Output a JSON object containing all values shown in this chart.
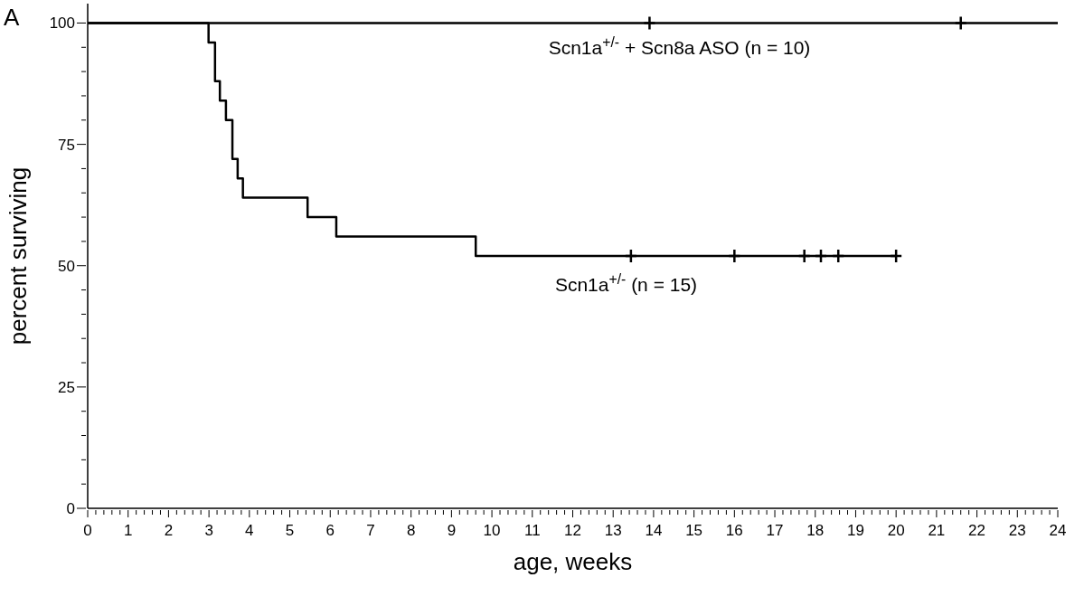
{
  "chart_data": {
    "type": "step",
    "xlabel": "age, weeks",
    "ylabel": "percent surviving",
    "annotations": [
      "A",
      "Scn1a$^{+/-}$ + Scn8a ASO  (n = 10)",
      "Scn1a$^{+/-}$  (n = 15)"
    ],
    "series": [
      {
        "color": "#000000",
        "x": [
          0,
          24
        ],
        "values": [
          100,
          100
        ]
      },
      {
        "color": "#000000",
        "x": [
          0,
          2.99,
          3.15,
          3.27,
          3.42,
          3.58,
          3.71,
          3.84,
          5.44,
          6.15,
          9.6,
          20
        ],
        "values": [
          100,
          96,
          88,
          84,
          80,
          72,
          68,
          64,
          60,
          56,
          52,
          52
        ]
      },
      {
        "type": "scatter",
        "marker": "cross",
        "color": "#000000",
        "x": [
          13.9,
          21.6
        ],
        "values": [
          100,
          100
        ]
      },
      {
        "type": "scatter",
        "marker": "cross",
        "color": "#000000",
        "x": [
          13.44,
          16,
          17.73,
          18.14,
          18.57,
          20
        ],
        "values": [
          52,
          52,
          52,
          52,
          52,
          52
        ]
      }
    ],
    "xlim": [
      0,
      24
    ],
    "ylim": [
      0,
      104
    ],
    "xticks": [
      0,
      {
        "value": 0.2,
        "label": null
      },
      {
        "value": 0.4,
        "label": null
      },
      {
        "value": 0.6,
        "label": null
      },
      {
        "value": 0.8,
        "label": null
      },
      1,
      {
        "value": 1.2,
        "label": null
      },
      {
        "value": 1.4,
        "label": null
      },
      {
        "value": 1.6,
        "label": null
      },
      {
        "value": 1.8,
        "label": null
      },
      2,
      {
        "value": 2.2,
        "label": null
      },
      {
        "value": 2.4,
        "label": null
      },
      {
        "value": 2.6,
        "label": null
      },
      {
        "value": 2.8,
        "label": null
      },
      3,
      {
        "value": 3.2,
        "label": null
      },
      {
        "value": 3.4,
        "label": null
      },
      {
        "value": 3.6,
        "label": null
      },
      {
        "value": 3.8,
        "label": null
      },
      4,
      {
        "value": 4.2,
        "label": null
      },
      {
        "value": 4.4,
        "label": null
      },
      {
        "value": 4.6,
        "label": null
      },
      {
        "value": 4.8,
        "label": null
      },
      5,
      {
        "value": 5.2,
        "label": null
      },
      {
        "value": 5.4,
        "label": null
      },
      {
        "value": 5.6,
        "label": null
      },
      {
        "value": 5.8,
        "label": null
      },
      6,
      {
        "value": 6.2,
        "label": null
      },
      {
        "value": 6.4,
        "label": null
      },
      {
        "value": 6.6,
        "label": null
      },
      {
        "value": 6.8,
        "label": null
      },
      7,
      {
        "value": 7.2,
        "label": null
      },
      {
        "value": 7.4,
        "label": null
      },
      {
        "value": 7.6,
        "label": null
      },
      {
        "value": 7.8,
        "label": null
      },
      8,
      {
        "value": 8.2,
        "label": null
      },
      {
        "value": 8.4,
        "label": null
      },
      {
        "value": 8.6,
        "label": null
      },
      {
        "value": 8.8,
        "label": null
      },
      9,
      {
        "value": 9.2,
        "label": null
      },
      {
        "value": 9.4,
        "label": null
      },
      {
        "value": 9.6,
        "label": null
      },
      {
        "value": 9.8,
        "label": null
      },
      10,
      {
        "value": 10.2,
        "label": null
      },
      {
        "value": 10.4,
        "label": null
      },
      {
        "value": 10.6,
        "label": null
      },
      {
        "value": 10.8,
        "label": null
      },
      11,
      {
        "value": 11.2,
        "label": null
      },
      {
        "value": 11.4,
        "label": null
      },
      {
        "value": 11.6,
        "label": null
      },
      {
        "value": 11.8,
        "label": null
      },
      12,
      {
        "value": 12.2,
        "label": null
      },
      {
        "value": 12.4,
        "label": null
      },
      {
        "value": 12.6,
        "label": null
      },
      {
        "value": 12.8,
        "label": null
      },
      13,
      {
        "value": 13.2,
        "label": null
      },
      {
        "value": 13.4,
        "label": null
      },
      {
        "value": 13.6,
        "label": null
      },
      {
        "value": 13.8,
        "label": null
      },
      14,
      {
        "value": 14.2,
        "label": null
      },
      {
        "value": 14.4,
        "label": null
      },
      {
        "value": 14.6,
        "label": null
      },
      {
        "value": 14.8,
        "label": null
      },
      15,
      {
        "value": 15.2,
        "label": null
      },
      {
        "value": 15.4,
        "label": null
      },
      {
        "value": 15.6,
        "label": null
      },
      {
        "value": 15.8,
        "label": null
      },
      16,
      {
        "value": 16.2,
        "label": null
      },
      {
        "value": 16.4,
        "label": null
      },
      {
        "value": 16.6,
        "label": null
      },
      {
        "value": 16.8,
        "label": null
      },
      17,
      {
        "value": 17.2,
        "label": null
      },
      {
        "value": 17.4,
        "label": null
      },
      {
        "value": 17.6,
        "label": null
      },
      {
        "value": 17.8,
        "label": null
      },
      18,
      {
        "value": 18.2,
        "label": null
      },
      {
        "value": 18.4,
        "label": null
      },
      {
        "value": 18.6,
        "label": null
      },
      {
        "value": 18.8,
        "label": null
      },
      19,
      {
        "value": 19.2,
        "label": null
      },
      {
        "value": 19.4,
        "label": null
      },
      {
        "value": 19.6,
        "label": null
      },
      {
        "value": 19.8,
        "label": null
      },
      20,
      {
        "value": 20.2,
        "label": null
      },
      {
        "value": 20.4,
        "label": null
      },
      {
        "value": 20.6,
        "label": null
      },
      {
        "value": 20.8,
        "label": null
      },
      21,
      {
        "value": 21.2,
        "label": null
      },
      {
        "value": 21.4,
        "label": null
      },
      {
        "value": 21.6,
        "label": null
      },
      {
        "value": 21.8,
        "label": null
      },
      22,
      {
        "value": 22.2,
        "label": null
      },
      {
        "value": 22.4,
        "label": null
      },
      {
        "value": 22.6,
        "label": null
      },
      {
        "value": 22.8,
        "label": null
      },
      23,
      {
        "value": 23.2,
        "label": null
      },
      {
        "value": 23.4,
        "label": null
      },
      {
        "value": 23.6,
        "label": null
      },
      {
        "value": 23.8,
        "label": null
      },
      24
    ],
    "yticks": [
      0,
      {
        "value": 5,
        "label": null
      },
      {
        "value": 10,
        "label": null
      },
      {
        "value": 15,
        "label": null
      },
      {
        "value": 20,
        "label": null
      },
      25,
      {
        "value": 30,
        "label": null
      },
      {
        "value": 35,
        "label": null
      },
      {
        "value": 40,
        "label": null
      },
      {
        "value": 45,
        "label": null
      },
      50,
      {
        "value": 55,
        "label": null
      },
      {
        "value": 60,
        "label": null
      },
      {
        "value": 65,
        "label": null
      },
      {
        "value": 70,
        "label": null
      },
      75,
      {
        "value": 80,
        "label": null
      },
      {
        "value": 85,
        "label": null
      },
      {
        "value": 90,
        "label": null
      },
      {
        "value": 95,
        "label": null
      },
      100
    ],
    "grid": false
  }
}
